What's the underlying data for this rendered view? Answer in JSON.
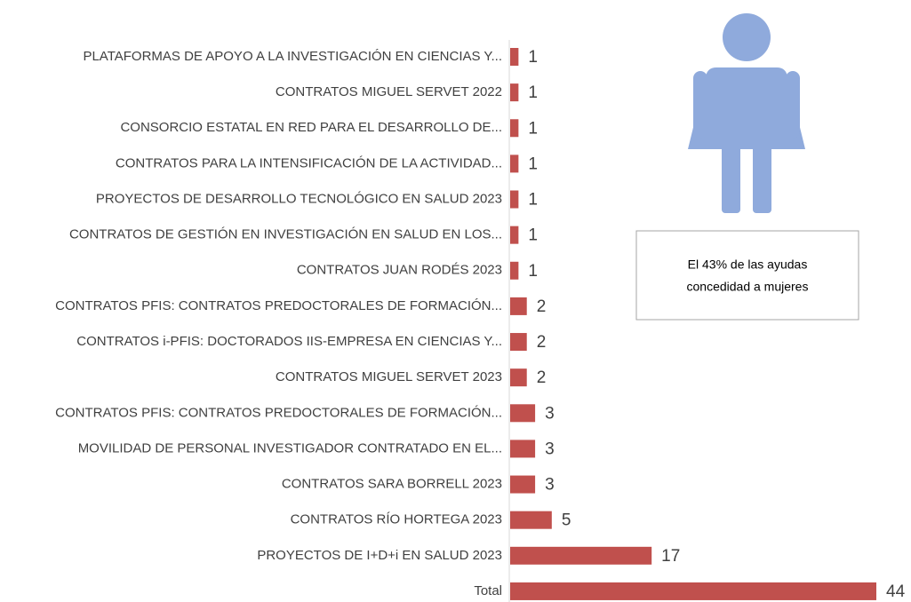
{
  "chart_data": {
    "type": "bar",
    "orientation": "horizontal",
    "categories": [
      "PLATAFORMAS DE APOYO A LA INVESTIGACIÓN EN CIENCIAS Y...",
      "CONTRATOS MIGUEL SERVET 2022",
      "CONSORCIO ESTATAL EN RED PARA EL DESARROLLO DE...",
      "CONTRATOS PARA LA INTENSIFICACIÓN DE LA ACTIVIDAD...",
      "PROYECTOS DE DESARROLLO TECNOLÓGICO EN SALUD 2023",
      "CONTRATOS DE GESTIÓN EN INVESTIGACIÓN EN SALUD EN LOS...",
      "CONTRATOS JUAN RODÉS 2023",
      "CONTRATOS PFIS: CONTRATOS PREDOCTORALES DE FORMACIÓN...",
      "CONTRATOS i-PFIS: DOCTORADOS IIS-EMPRESA EN CIENCIAS Y...",
      "CONTRATOS MIGUEL SERVET 2023",
      "CONTRATOS PFIS: CONTRATOS PREDOCTORALES DE FORMACIÓN...",
      "MOVILIDAD DE PERSONAL INVESTIGADOR CONTRATADO EN EL...",
      "CONTRATOS SARA BORRELL 2023",
      "CONTRATOS RÍO HORTEGA 2023",
      "PROYECTOS DE I+D+i EN SALUD 2023",
      "Total"
    ],
    "values": [
      1,
      1,
      1,
      1,
      1,
      1,
      1,
      2,
      2,
      2,
      3,
      3,
      3,
      5,
      17,
      44
    ],
    "color": "#c0504d",
    "annotation": [
      "El 43% de las ayudas",
      "concedidad a mujeres"
    ]
  }
}
